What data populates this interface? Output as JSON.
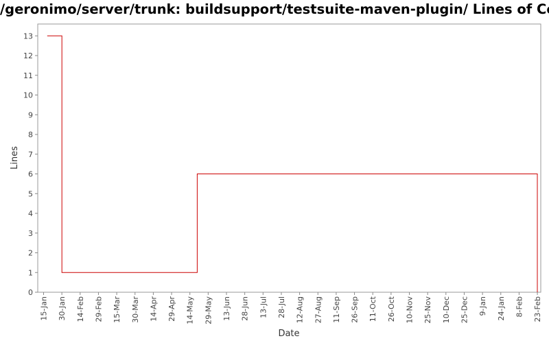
{
  "chart_data": {
    "type": "line",
    "title": "/geronimo/server/trunk: buildsupport/testsuite-maven-plugin/ Lines of Code",
    "xlabel": "Date",
    "ylabel": "Lines",
    "ylim": [
      0,
      13.6
    ],
    "yticks": [
      0,
      1,
      2,
      3,
      4,
      5,
      6,
      7,
      8,
      9,
      10,
      11,
      12,
      13
    ],
    "xticks": [
      "15-Jan",
      "30-Jan",
      "14-Feb",
      "29-Feb",
      "15-Mar",
      "30-Mar",
      "14-Apr",
      "29-Apr",
      "14-May",
      "29-May",
      "13-Jun",
      "28-Jun",
      "13-Jul",
      "28-Jul",
      "12-Aug",
      "27-Aug",
      "11-Sep",
      "26-Sep",
      "11-Oct",
      "26-Oct",
      "10-Nov",
      "25-Nov",
      "10-Dec",
      "25-Dec",
      "9-Jan",
      "24-Jan",
      "8-Feb",
      "23-Feb"
    ],
    "step": "post",
    "grid": false,
    "line_color": "#cc0000",
    "series": [
      {
        "x": [
          "2008-01-18",
          "2008-01-30",
          "2008-05-20",
          "2009-02-23"
        ],
        "y": [
          13,
          1,
          6,
          0
        ]
      }
    ]
  }
}
